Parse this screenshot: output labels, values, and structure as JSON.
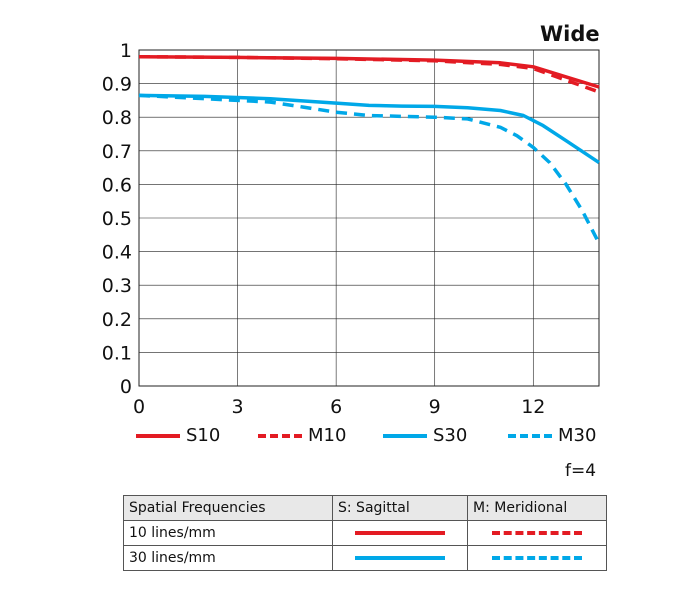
{
  "chart_data": {
    "type": "line",
    "title": "Wide",
    "xlim": [
      0,
      14
    ],
    "ylim": [
      0,
      1
    ],
    "x_ticks": [
      "0",
      "3",
      "6",
      "9",
      "12"
    ],
    "y_ticks": [
      "0",
      "0.1",
      "0.2",
      "0.3",
      "0.4",
      "0.5",
      "0.6",
      "0.7",
      "0.8",
      "0.9",
      "1"
    ],
    "grid": true,
    "legend_position": "bottom",
    "series": [
      {
        "name": "S10",
        "color": "#e31b23",
        "style": "solid",
        "x": [
          0,
          3,
          6,
          9,
          11,
          12,
          13,
          14
        ],
        "y": [
          0.98,
          0.978,
          0.975,
          0.97,
          0.962,
          0.95,
          0.92,
          0.89
        ]
      },
      {
        "name": "M10",
        "color": "#e31b23",
        "style": "dashed",
        "x": [
          0,
          3,
          6,
          9,
          11,
          12,
          13,
          14
        ],
        "y": [
          0.98,
          0.978,
          0.974,
          0.968,
          0.957,
          0.945,
          0.91,
          0.875
        ]
      },
      {
        "name": "S30",
        "color": "#00a8e8",
        "style": "solid",
        "x": [
          0,
          2,
          4,
          6,
          7,
          8,
          9,
          10,
          11,
          11.7,
          12.3,
          13,
          14
        ],
        "y": [
          0.865,
          0.862,
          0.855,
          0.842,
          0.835,
          0.833,
          0.832,
          0.828,
          0.82,
          0.805,
          0.775,
          0.73,
          0.665
        ]
      },
      {
        "name": "M30",
        "color": "#00a8e8",
        "style": "dashed",
        "x": [
          0,
          2,
          4,
          5,
          6,
          7,
          9,
          10,
          11,
          11.5,
          12,
          12.5,
          13,
          13.5,
          14
        ],
        "y": [
          0.865,
          0.855,
          0.845,
          0.83,
          0.815,
          0.805,
          0.8,
          0.795,
          0.77,
          0.745,
          0.71,
          0.665,
          0.6,
          0.52,
          0.425
        ]
      }
    ],
    "note": "f=4"
  },
  "table": {
    "headers": [
      "Spatial Frequencies",
      "S: Sagittal",
      "M: Meridional"
    ],
    "rows": [
      {
        "label": "10 lines/mm"
      },
      {
        "label": "30 lines/mm"
      }
    ]
  }
}
